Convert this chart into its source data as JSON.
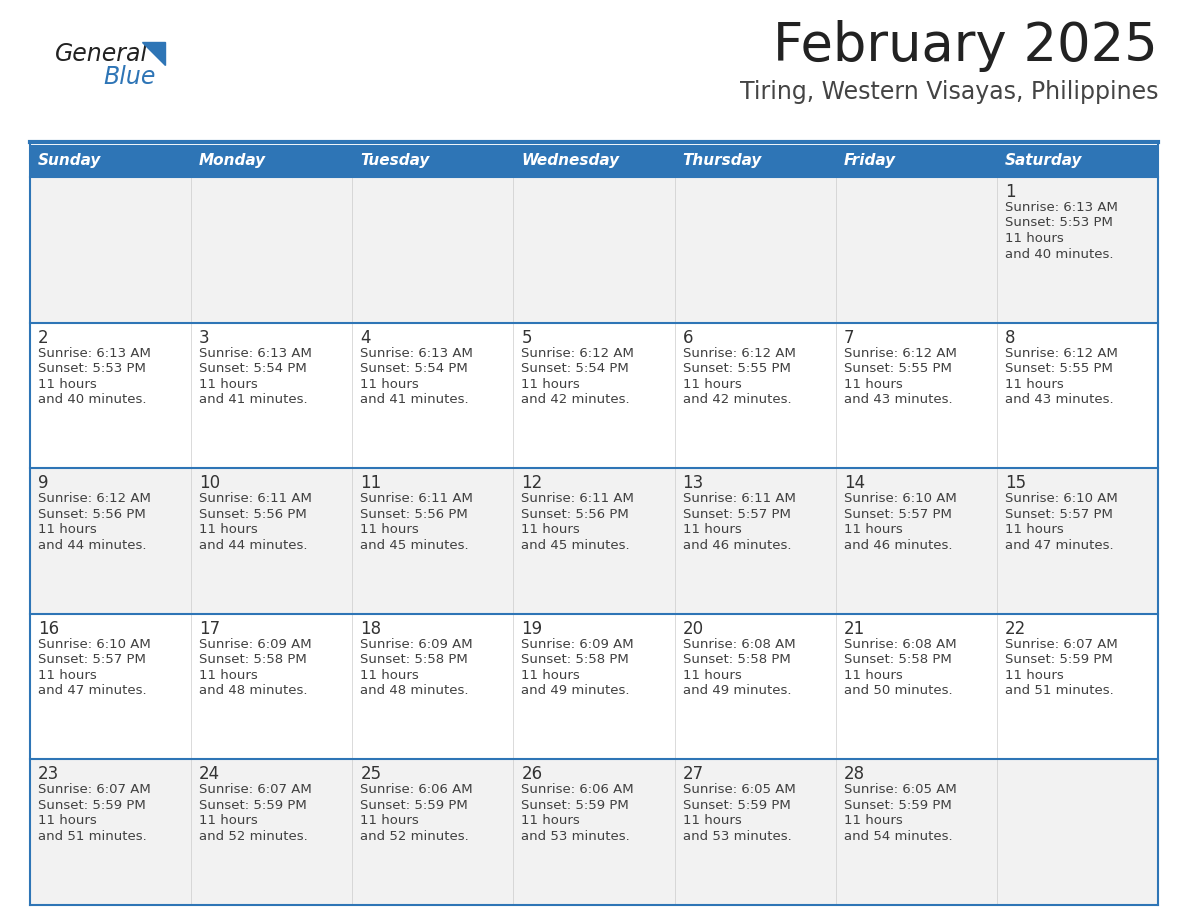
{
  "title": "February 2025",
  "subtitle": "Tiring, Western Visayas, Philippines",
  "days_of_week": [
    "Sunday",
    "Monday",
    "Tuesday",
    "Wednesday",
    "Thursday",
    "Friday",
    "Saturday"
  ],
  "header_bg": "#2E75B6",
  "header_text": "#FFFFFF",
  "cell_bg_odd": "#F2F2F2",
  "cell_bg_even": "#FFFFFF",
  "border_color": "#2E75B6",
  "separator_color": "#AAAAAA",
  "text_color": "#404040",
  "day_num_color": "#333333",
  "title_color": "#222222",
  "subtitle_color": "#444444",
  "logo_color_general": "#222222",
  "logo_color_blue": "#2E75B6",
  "calendar_data": [
    [
      {
        "day": null,
        "sunrise": null,
        "sunset": null,
        "daylight": null
      },
      {
        "day": null,
        "sunrise": null,
        "sunset": null,
        "daylight": null
      },
      {
        "day": null,
        "sunrise": null,
        "sunset": null,
        "daylight": null
      },
      {
        "day": null,
        "sunrise": null,
        "sunset": null,
        "daylight": null
      },
      {
        "day": null,
        "sunrise": null,
        "sunset": null,
        "daylight": null
      },
      {
        "day": null,
        "sunrise": null,
        "sunset": null,
        "daylight": null
      },
      {
        "day": 1,
        "sunrise": "6:13 AM",
        "sunset": "5:53 PM",
        "daylight": "11 hours and 40 minutes."
      }
    ],
    [
      {
        "day": 2,
        "sunrise": "6:13 AM",
        "sunset": "5:53 PM",
        "daylight": "11 hours and 40 minutes."
      },
      {
        "day": 3,
        "sunrise": "6:13 AM",
        "sunset": "5:54 PM",
        "daylight": "11 hours and 41 minutes."
      },
      {
        "day": 4,
        "sunrise": "6:13 AM",
        "sunset": "5:54 PM",
        "daylight": "11 hours and 41 minutes."
      },
      {
        "day": 5,
        "sunrise": "6:12 AM",
        "sunset": "5:54 PM",
        "daylight": "11 hours and 42 minutes."
      },
      {
        "day": 6,
        "sunrise": "6:12 AM",
        "sunset": "5:55 PM",
        "daylight": "11 hours and 42 minutes."
      },
      {
        "day": 7,
        "sunrise": "6:12 AM",
        "sunset": "5:55 PM",
        "daylight": "11 hours and 43 minutes."
      },
      {
        "day": 8,
        "sunrise": "6:12 AM",
        "sunset": "5:55 PM",
        "daylight": "11 hours and 43 minutes."
      }
    ],
    [
      {
        "day": 9,
        "sunrise": "6:12 AM",
        "sunset": "5:56 PM",
        "daylight": "11 hours and 44 minutes."
      },
      {
        "day": 10,
        "sunrise": "6:11 AM",
        "sunset": "5:56 PM",
        "daylight": "11 hours and 44 minutes."
      },
      {
        "day": 11,
        "sunrise": "6:11 AM",
        "sunset": "5:56 PM",
        "daylight": "11 hours and 45 minutes."
      },
      {
        "day": 12,
        "sunrise": "6:11 AM",
        "sunset": "5:56 PM",
        "daylight": "11 hours and 45 minutes."
      },
      {
        "day": 13,
        "sunrise": "6:11 AM",
        "sunset": "5:57 PM",
        "daylight": "11 hours and 46 minutes."
      },
      {
        "day": 14,
        "sunrise": "6:10 AM",
        "sunset": "5:57 PM",
        "daylight": "11 hours and 46 minutes."
      },
      {
        "day": 15,
        "sunrise": "6:10 AM",
        "sunset": "5:57 PM",
        "daylight": "11 hours and 47 minutes."
      }
    ],
    [
      {
        "day": 16,
        "sunrise": "6:10 AM",
        "sunset": "5:57 PM",
        "daylight": "11 hours and 47 minutes."
      },
      {
        "day": 17,
        "sunrise": "6:09 AM",
        "sunset": "5:58 PM",
        "daylight": "11 hours and 48 minutes."
      },
      {
        "day": 18,
        "sunrise": "6:09 AM",
        "sunset": "5:58 PM",
        "daylight": "11 hours and 48 minutes."
      },
      {
        "day": 19,
        "sunrise": "6:09 AM",
        "sunset": "5:58 PM",
        "daylight": "11 hours and 49 minutes."
      },
      {
        "day": 20,
        "sunrise": "6:08 AM",
        "sunset": "5:58 PM",
        "daylight": "11 hours and 49 minutes."
      },
      {
        "day": 21,
        "sunrise": "6:08 AM",
        "sunset": "5:58 PM",
        "daylight": "11 hours and 50 minutes."
      },
      {
        "day": 22,
        "sunrise": "6:07 AM",
        "sunset": "5:59 PM",
        "daylight": "11 hours and 51 minutes."
      }
    ],
    [
      {
        "day": 23,
        "sunrise": "6:07 AM",
        "sunset": "5:59 PM",
        "daylight": "11 hours and 51 minutes."
      },
      {
        "day": 24,
        "sunrise": "6:07 AM",
        "sunset": "5:59 PM",
        "daylight": "11 hours and 52 minutes."
      },
      {
        "day": 25,
        "sunrise": "6:06 AM",
        "sunset": "5:59 PM",
        "daylight": "11 hours and 52 minutes."
      },
      {
        "day": 26,
        "sunrise": "6:06 AM",
        "sunset": "5:59 PM",
        "daylight": "11 hours and 53 minutes."
      },
      {
        "day": 27,
        "sunrise": "6:05 AM",
        "sunset": "5:59 PM",
        "daylight": "11 hours and 53 minutes."
      },
      {
        "day": 28,
        "sunrise": "6:05 AM",
        "sunset": "5:59 PM",
        "daylight": "11 hours and 54 minutes."
      },
      {
        "day": null,
        "sunrise": null,
        "sunset": null,
        "daylight": null
      }
    ]
  ]
}
